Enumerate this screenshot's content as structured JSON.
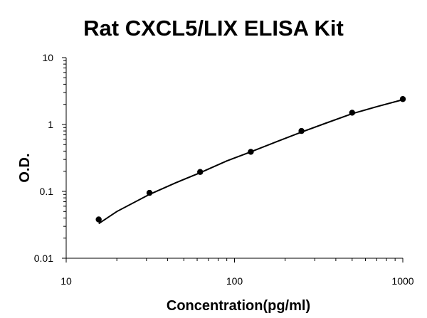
{
  "chart_data": {
    "type": "scatter",
    "title": "Rat CXCL5/LIX ELISA Kit",
    "xlabel": "Concentration(pg/ml)",
    "ylabel": "O.D.",
    "xscale": "log",
    "yscale": "log",
    "xlim": [
      10,
      1000
    ],
    "ylim": [
      0.01,
      10
    ],
    "x_ticks": [
      "10",
      "100",
      "1000"
    ],
    "y_ticks": [
      "0.01",
      "0.1",
      "1",
      "10"
    ],
    "grid": false,
    "legend": "none",
    "series": [
      {
        "points": [
          {
            "x": 15.6,
            "y": 0.038
          },
          {
            "x": 31.25,
            "y": 0.095
          },
          {
            "x": 62.5,
            "y": 0.195
          },
          {
            "x": 125,
            "y": 0.39
          },
          {
            "x": 250,
            "y": 0.8
          },
          {
            "x": 500,
            "y": 1.5
          },
          {
            "x": 1000,
            "y": 2.4
          }
        ]
      }
    ],
    "fit_curve": [
      {
        "x": 15.6,
        "y": 0.033
      },
      {
        "x": 20,
        "y": 0.05
      },
      {
        "x": 31.25,
        "y": 0.09
      },
      {
        "x": 45,
        "y": 0.135
      },
      {
        "x": 62.5,
        "y": 0.19
      },
      {
        "x": 90,
        "y": 0.285
      },
      {
        "x": 125,
        "y": 0.39
      },
      {
        "x": 180,
        "y": 0.56
      },
      {
        "x": 250,
        "y": 0.77
      },
      {
        "x": 350,
        "y": 1.05
      },
      {
        "x": 500,
        "y": 1.45
      },
      {
        "x": 700,
        "y": 1.85
      },
      {
        "x": 1000,
        "y": 2.35
      }
    ],
    "colors": {
      "axis": "#000000",
      "marker": "#000000",
      "curve": "#000000"
    }
  }
}
